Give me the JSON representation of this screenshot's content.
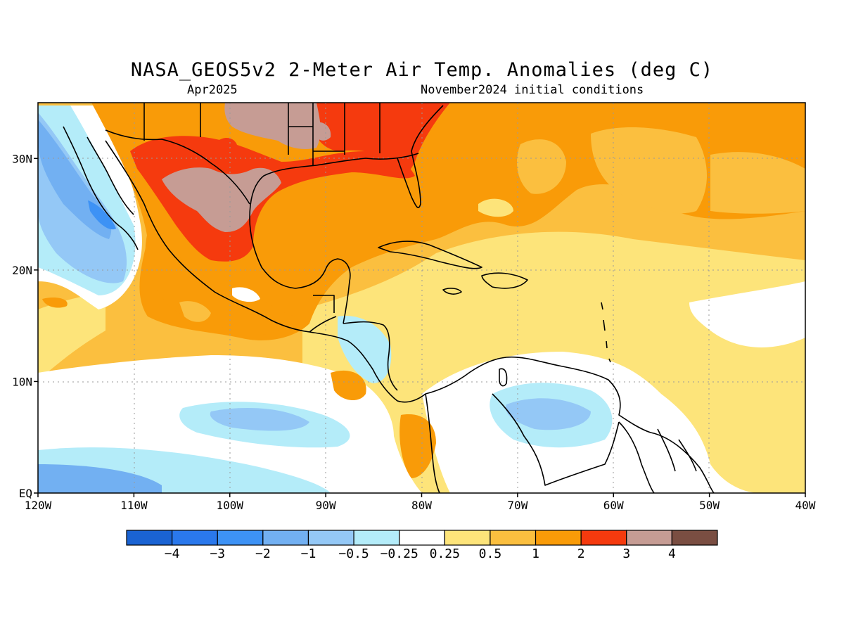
{
  "title": "NASA_GEOS5v2 2-Meter Air Temp. Anomalies (deg C)",
  "subtitle_left": "Apr2025",
  "subtitle_right": "November2024 initial conditions",
  "map": {
    "lon_range": [
      -120,
      -40
    ],
    "lat_range": [
      0,
      35
    ],
    "lat_ticks": [
      {
        "value": 30,
        "label": "30N"
      },
      {
        "value": 20,
        "label": "20N"
      },
      {
        "value": 10,
        "label": "10N"
      },
      {
        "value": 0,
        "label": "EQ"
      }
    ],
    "lon_ticks": [
      {
        "value": -120,
        "label": "120W"
      },
      {
        "value": -110,
        "label": "110W"
      },
      {
        "value": -100,
        "label": "100W"
      },
      {
        "value": -90,
        "label": "90W"
      },
      {
        "value": -80,
        "label": "80W"
      },
      {
        "value": -70,
        "label": "70W"
      },
      {
        "value": -60,
        "label": "60W"
      },
      {
        "value": -50,
        "label": "50W"
      },
      {
        "value": -40,
        "label": "40W"
      }
    ],
    "grid": "dotted"
  },
  "colorbar": {
    "colors": [
      "#1a63d3",
      "#2a78ec",
      "#3d92f5",
      "#72b0f2",
      "#94c8f6",
      "#b4ecf9",
      "#ffffff",
      "#fde47a",
      "#fbbf3f",
      "#f99b08",
      "#f53a0e",
      "#c69c94",
      "#7a4e42"
    ],
    "labels": [
      "-4",
      "-3",
      "-2",
      "-1",
      "-0.5",
      "-0.25",
      "0.25",
      "0.5",
      "1",
      "2",
      "3",
      "4"
    ]
  }
}
